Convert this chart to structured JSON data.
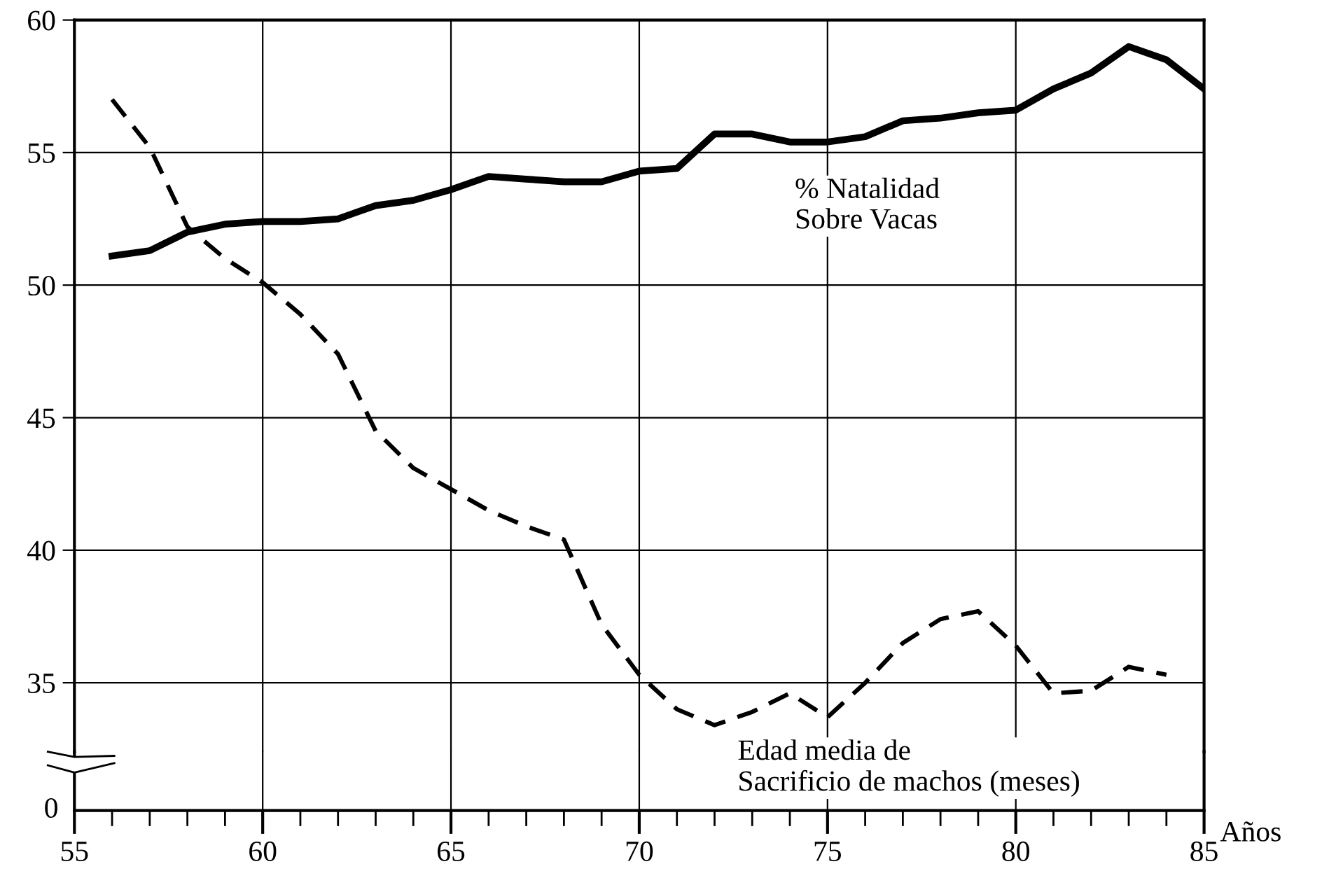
{
  "chart_data": {
    "type": "line",
    "xlabel": "Años",
    "annotations": [
      "0"
    ],
    "x": [
      56,
      57,
      58,
      59,
      60,
      61,
      62,
      63,
      64,
      65,
      66,
      67,
      68,
      69,
      70,
      71,
      72,
      73,
      74,
      75,
      76,
      77,
      78,
      79,
      80,
      81,
      82,
      83,
      84,
      85
    ],
    "series": [
      {
        "name": "% Natalidad\nSobre Vacas",
        "color": "#000000",
        "line_style": "solid",
        "values": [
          51.1,
          51.3,
          52.0,
          52.3,
          52.4,
          52.4,
          52.5,
          53.0,
          53.2,
          53.6,
          54.1,
          54.0,
          53.9,
          53.9,
          54.3,
          54.4,
          55.7,
          55.7,
          55.4,
          55.4,
          55.6,
          56.2,
          56.3,
          56.5,
          56.6,
          57.4,
          58.0,
          59.0,
          58.5,
          57.4
        ]
      },
      {
        "name": "Edad media de\nSacrificio de machos (meses)",
        "color": "#000000",
        "line_style": "dashed",
        "values": [
          57.0,
          55.2,
          52.2,
          51.0,
          50.1,
          48.9,
          47.4,
          44.5,
          43.1,
          42.3,
          41.5,
          40.9,
          40.4,
          37.2,
          35.3,
          34.0,
          33.4,
          33.9,
          34.6,
          33.7,
          35.0,
          36.5,
          37.4,
          37.7,
          36.4,
          34.6,
          34.7,
          35.6,
          35.3,
          null
        ]
      }
    ],
    "xlim": [
      55,
      85
    ],
    "xticks": [
      55,
      60,
      65,
      70,
      75,
      80,
      85
    ],
    "ylim": [
      32.4,
      60
    ],
    "yticks": [
      35,
      40,
      45,
      50,
      55,
      60
    ],
    "grid": true,
    "legend": false,
    "marker": "none"
  }
}
